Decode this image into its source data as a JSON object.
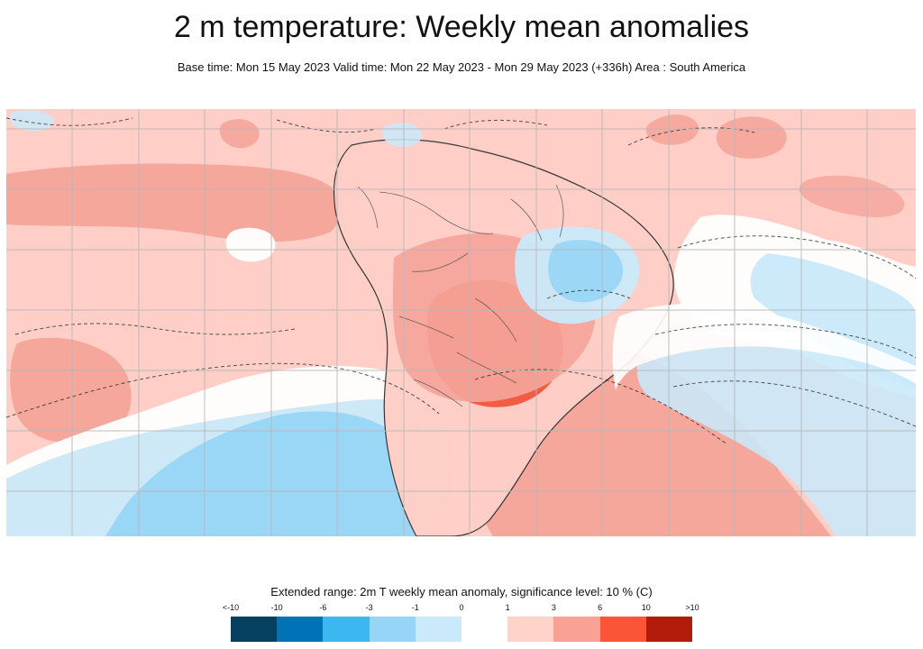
{
  "header": {
    "title": "2 m temperature: Weekly mean anomalies",
    "subtitle": "Base time: Mon 15 May 2023 Valid time: Mon 22 May 2023 - Mon 29 May 2023 (+336h) Area : South America"
  },
  "legend": {
    "title": "Extended range: 2m T weekly mean anomaly, significance level: 10 % (C)",
    "ticks": [
      "<-10",
      "-10",
      "-6",
      "-3",
      "-1",
      "0",
      "1",
      "3",
      "6",
      "10",
      ">10"
    ],
    "colors": [
      "#063f5f",
      "#0073b7",
      "#3cb7f0",
      "#97d5f6",
      "#cae9fa",
      "#ffffff",
      "#ffd2ca",
      "#faa196",
      "#fb5437",
      "#b31b0a",
      "#5b0e08"
    ]
  },
  "map": {
    "area": "South America",
    "colors": {
      "warm_light": "#ffcfc7",
      "warm_mid": "#f5a49a",
      "warm_strong": "#f25a3f",
      "neutral": "#ffffff",
      "cool_light": "#cae9fa",
      "cool_mid": "#97d5f6",
      "grid": "#b8b8b8",
      "coast": "#333333"
    }
  }
}
